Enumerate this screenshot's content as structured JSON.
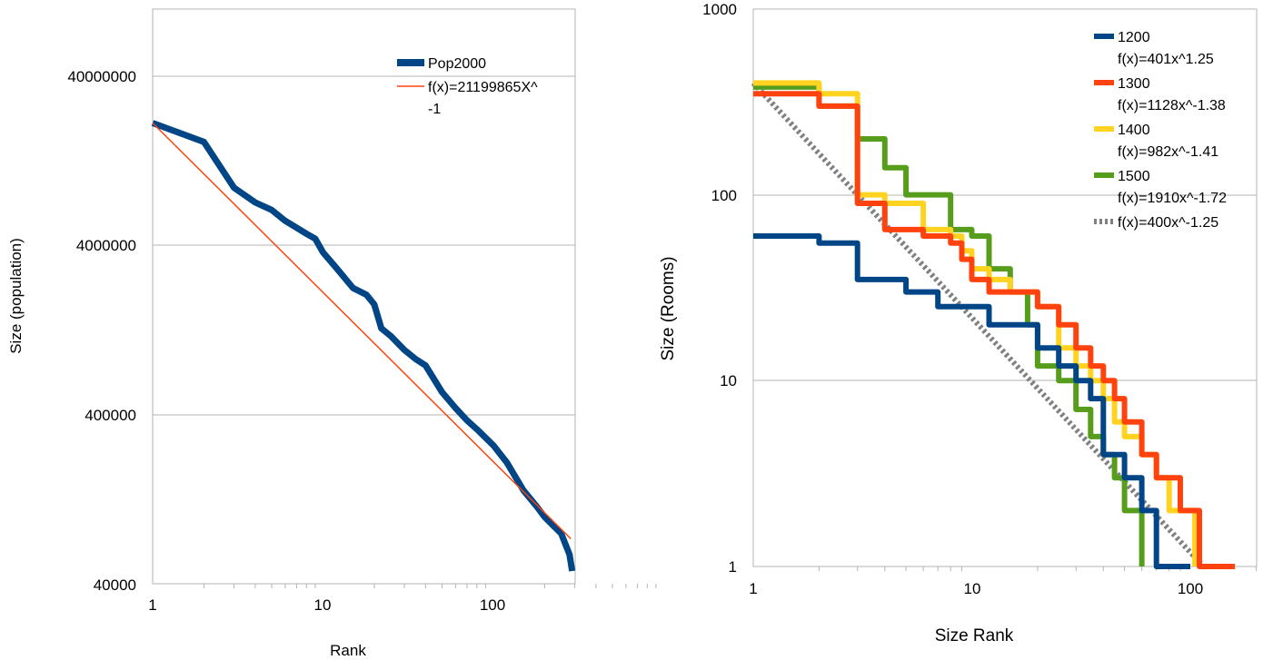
{
  "chart_data": [
    {
      "type": "line",
      "title": "",
      "xlabel": "Rank",
      "ylabel": "Size (population)",
      "x_scale": "log",
      "y_scale": "log",
      "xlim": [
        1,
        1000
      ],
      "ylim": [
        40000,
        160000000
      ],
      "x_ticks": [
        1,
        10,
        100
      ],
      "x_tick_labels": [
        "1",
        "10",
        "100"
      ],
      "y_ticks": [
        40000,
        400000,
        4000000,
        40000000
      ],
      "y_tick_labels": [
        "40000",
        "400000",
        "4000000",
        "40000000"
      ],
      "grid": "horizontal",
      "legend_position": "top-right",
      "series": [
        {
          "name": "Pop2000",
          "color": "#004586",
          "style": "solid-thick",
          "x": [
            1,
            2,
            3,
            4,
            5,
            6,
            7,
            8,
            9,
            10,
            12,
            15,
            18,
            20,
            22,
            25,
            30,
            35,
            40,
            50,
            60,
            70,
            80,
            100,
            120,
            150,
            180,
            200,
            250,
            280,
            290
          ],
          "y": [
            21200000,
            16400000,
            8800000,
            7200000,
            6500000,
            5600000,
            5100000,
            4700000,
            4400000,
            3650000,
            2950000,
            2250000,
            2050000,
            1800000,
            1300000,
            1170000,
            970000,
            855000,
            785000,
            545000,
            440000,
            372000,
            330000,
            265000,
            210000,
            144000,
            115000,
            100000,
            80000,
            60000,
            48000
          ]
        },
        {
          "name": "f(x)=21199865X^-1",
          "color": "#ff420e",
          "style": "solid-thin",
          "x": [
            1,
            285
          ],
          "y": [
            21200000,
            74400
          ]
        }
      ]
    },
    {
      "type": "line",
      "title": "",
      "xlabel": "Size Rank",
      "ylabel": "Size (Rooms)",
      "x_scale": "log",
      "y_scale": "log",
      "xlim": [
        1,
        200
      ],
      "ylim": [
        1,
        1000
      ],
      "x_ticks": [
        1,
        10,
        100
      ],
      "x_tick_labels": [
        "1",
        "10",
        "100"
      ],
      "y_ticks": [
        1,
        10,
        100,
        1000
      ],
      "y_tick_labels": [
        "1",
        "10",
        "100",
        "1000"
      ],
      "grid": "horizontal",
      "legend_position": "top-right",
      "series": [
        {
          "name": "1200",
          "fit_label": "f(x)=401x^1.25",
          "color": "#004586",
          "style": "solid-thick",
          "x": [
            1,
            2,
            3,
            4,
            5,
            6,
            7,
            8,
            9,
            10,
            12,
            15,
            20,
            25,
            30,
            35,
            40,
            45,
            50,
            60,
            70,
            100
          ],
          "y": [
            60,
            55,
            35,
            35,
            30,
            30,
            25,
            25,
            25,
            25,
            20,
            20,
            15,
            12,
            10,
            8,
            4,
            4,
            3,
            2,
            1,
            1
          ]
        },
        {
          "name": "1300",
          "fit_label": "f(x)=1128x^-1.38",
          "color": "#ff420e",
          "style": "solid-thick",
          "x": [
            1,
            2,
            3,
            4,
            5,
            6,
            7,
            8,
            9,
            10,
            12,
            15,
            20,
            25,
            30,
            35,
            40,
            45,
            50,
            60,
            70,
            80,
            90,
            110,
            160
          ],
          "y": [
            350,
            300,
            90,
            65,
            65,
            60,
            60,
            55,
            45,
            35,
            30,
            30,
            25,
            20,
            15,
            12,
            10,
            8,
            6,
            4,
            3,
            3,
            2,
            1,
            1
          ]
        },
        {
          "name": "1400",
          "fit_label": "f(x)=982x^-1.41",
          "color": "#ffd320",
          "style": "solid-thick",
          "x": [
            1,
            2,
            3,
            4,
            5,
            6,
            7,
            8,
            9,
            10,
            12,
            15,
            20,
            25,
            30,
            35,
            40,
            45,
            50,
            60,
            70,
            80,
            90,
            105
          ],
          "y": [
            400,
            350,
            100,
            90,
            90,
            65,
            65,
            60,
            50,
            40,
            35,
            30,
            25,
            15,
            12,
            10,
            8,
            6,
            5,
            4,
            3,
            2,
            2,
            1
          ]
        },
        {
          "name": "1500",
          "fit_label": "f(x)=1910x^-1.72",
          "color": "#579d1c",
          "style": "solid-thick",
          "x": [
            1,
            2,
            3,
            4,
            5,
            6,
            7,
            8,
            9,
            10,
            12,
            15,
            18,
            20,
            25,
            30,
            35,
            40,
            45,
            50,
            60
          ],
          "y": [
            380,
            300,
            200,
            140,
            100,
            100,
            100,
            65,
            65,
            60,
            40,
            30,
            20,
            12,
            10,
            7,
            5,
            4,
            3,
            2,
            1
          ]
        },
        {
          "name": "f(x)=400x^-1.25",
          "color": "#808080",
          "style": "dotted",
          "x": [
            1,
            115
          ],
          "y": [
            400,
            1
          ]
        }
      ]
    }
  ]
}
